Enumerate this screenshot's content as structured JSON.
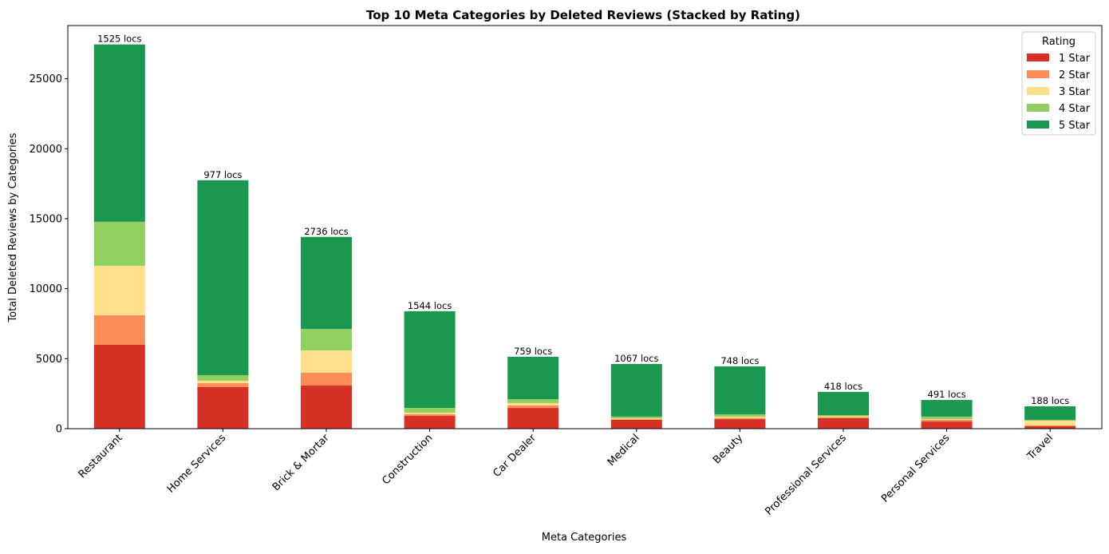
{
  "chart_data": {
    "type": "bar",
    "stacked": true,
    "title": "Top 10 Meta Categories by Deleted Reviews (Stacked by Rating)",
    "xlabel": "Meta Categories",
    "ylabel": "Total Deleted Reviews by Categories",
    "ylim": [
      0,
      28800
    ],
    "yticks": [
      0,
      5000,
      10000,
      15000,
      20000,
      25000
    ],
    "grid": false,
    "legend": {
      "title": "Rating",
      "placement": "top-right"
    },
    "categories": [
      "Restaurant",
      "Home Services",
      "Brick & Mortar",
      "Construction",
      "Car Dealer",
      "Medical",
      "Beauty",
      "Professional Services",
      "Personal Services",
      "Travel"
    ],
    "bar_labels": [
      "1525 locs",
      "977 locs",
      "2736 locs",
      "1544 locs",
      "759 locs",
      "1067 locs",
      "748 locs",
      "418 locs",
      "491 locs",
      "188 locs"
    ],
    "series": [
      {
        "name": "1 Star",
        "color": "#d73027",
        "values": [
          5990,
          2970,
          3080,
          910,
          1480,
          630,
          680,
          760,
          510,
          170
        ]
      },
      {
        "name": "2 Star",
        "color": "#fc8d59",
        "values": [
          2110,
          280,
          920,
          120,
          190,
          50,
          80,
          60,
          120,
          60
        ]
      },
      {
        "name": "3 Star",
        "color": "#fee08b",
        "values": [
          3540,
          170,
          1590,
          110,
          160,
          60,
          100,
          60,
          50,
          340
        ]
      },
      {
        "name": "4 Star",
        "color": "#91cf60",
        "values": [
          3140,
          400,
          1540,
          340,
          280,
          120,
          170,
          90,
          180,
          60
        ]
      },
      {
        "name": "5 Star",
        "color": "#1a9850",
        "values": [
          12670,
          13930,
          6570,
          6910,
          3030,
          3760,
          3420,
          1660,
          1190,
          970
        ]
      }
    ]
  }
}
